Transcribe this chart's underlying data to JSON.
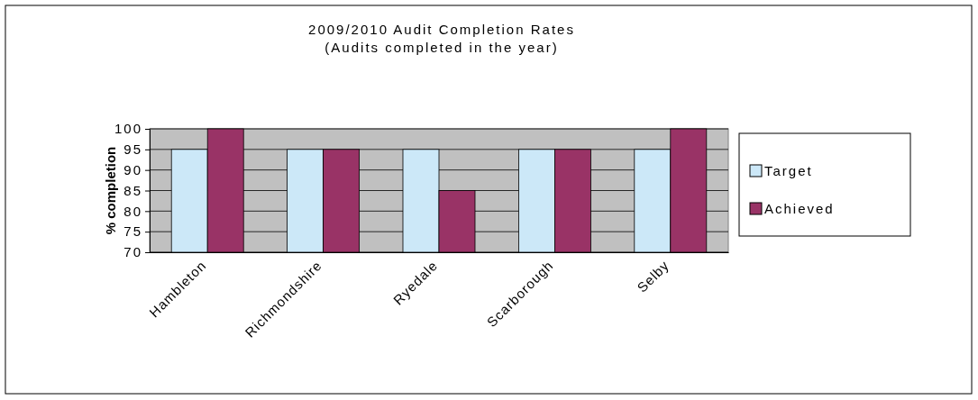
{
  "chart_data": {
    "type": "bar",
    "title": "2009/2010 Audit Completion Rates",
    "subtitle": "(Audits completed in the year)",
    "ylabel": "% completion",
    "categories": [
      "Hambleton",
      "Richmondshire",
      "Ryedale",
      "Scarborough",
      "Selby"
    ],
    "series": [
      {
        "name": "Target",
        "color": "#cce8f8",
        "values": [
          95,
          95,
          95,
          95,
          95
        ]
      },
      {
        "name": "Achieved",
        "color": "#993366",
        "values": [
          100,
          95,
          85,
          95,
          100
        ]
      }
    ],
    "ylim": [
      70,
      100
    ],
    "yticks": [
      70,
      75,
      80,
      85,
      90,
      95,
      100
    ],
    "grid": "y",
    "legend": "right"
  }
}
